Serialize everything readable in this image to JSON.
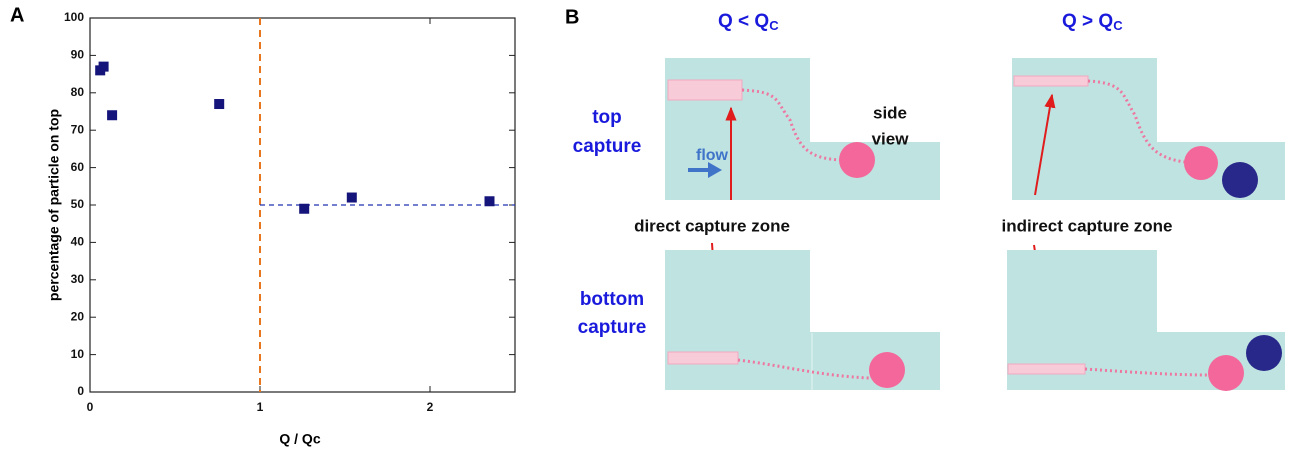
{
  "chart_data": {
    "type": "scatter",
    "panel_label": "A",
    "x_label": "Q / Qc",
    "y_label": "percentage of particle on top",
    "x": [
      0.06,
      0.08,
      0.13,
      0.76,
      1.26,
      1.54,
      2.35
    ],
    "values": [
      86,
      87,
      74,
      77,
      49,
      52,
      51
    ],
    "color": "#14147a",
    "xlim": [
      0,
      2.5
    ],
    "xticks": [
      0,
      1,
      2
    ],
    "ylim": [
      0,
      100
    ],
    "yticks": [
      0,
      10,
      20,
      30,
      40,
      50,
      60,
      70,
      80,
      90,
      100
    ],
    "vline": {
      "x": 1,
      "color": "#e8761e"
    },
    "hline": {
      "y": 50,
      "from": 1,
      "color": "#2230b0"
    }
  },
  "panel_b": {
    "label": "B",
    "headers": [
      {
        "text": "Q < Q",
        "sub": "C"
      },
      {
        "text": "Q > Q",
        "sub": "C"
      }
    ],
    "rows": [
      [
        "top",
        "capture"
      ],
      [
        "bottom",
        "capture"
      ]
    ],
    "flow": "flow",
    "side_view": [
      "side",
      "view"
    ],
    "direct": "direct capture zone",
    "indirect": "indirect capture zone"
  }
}
